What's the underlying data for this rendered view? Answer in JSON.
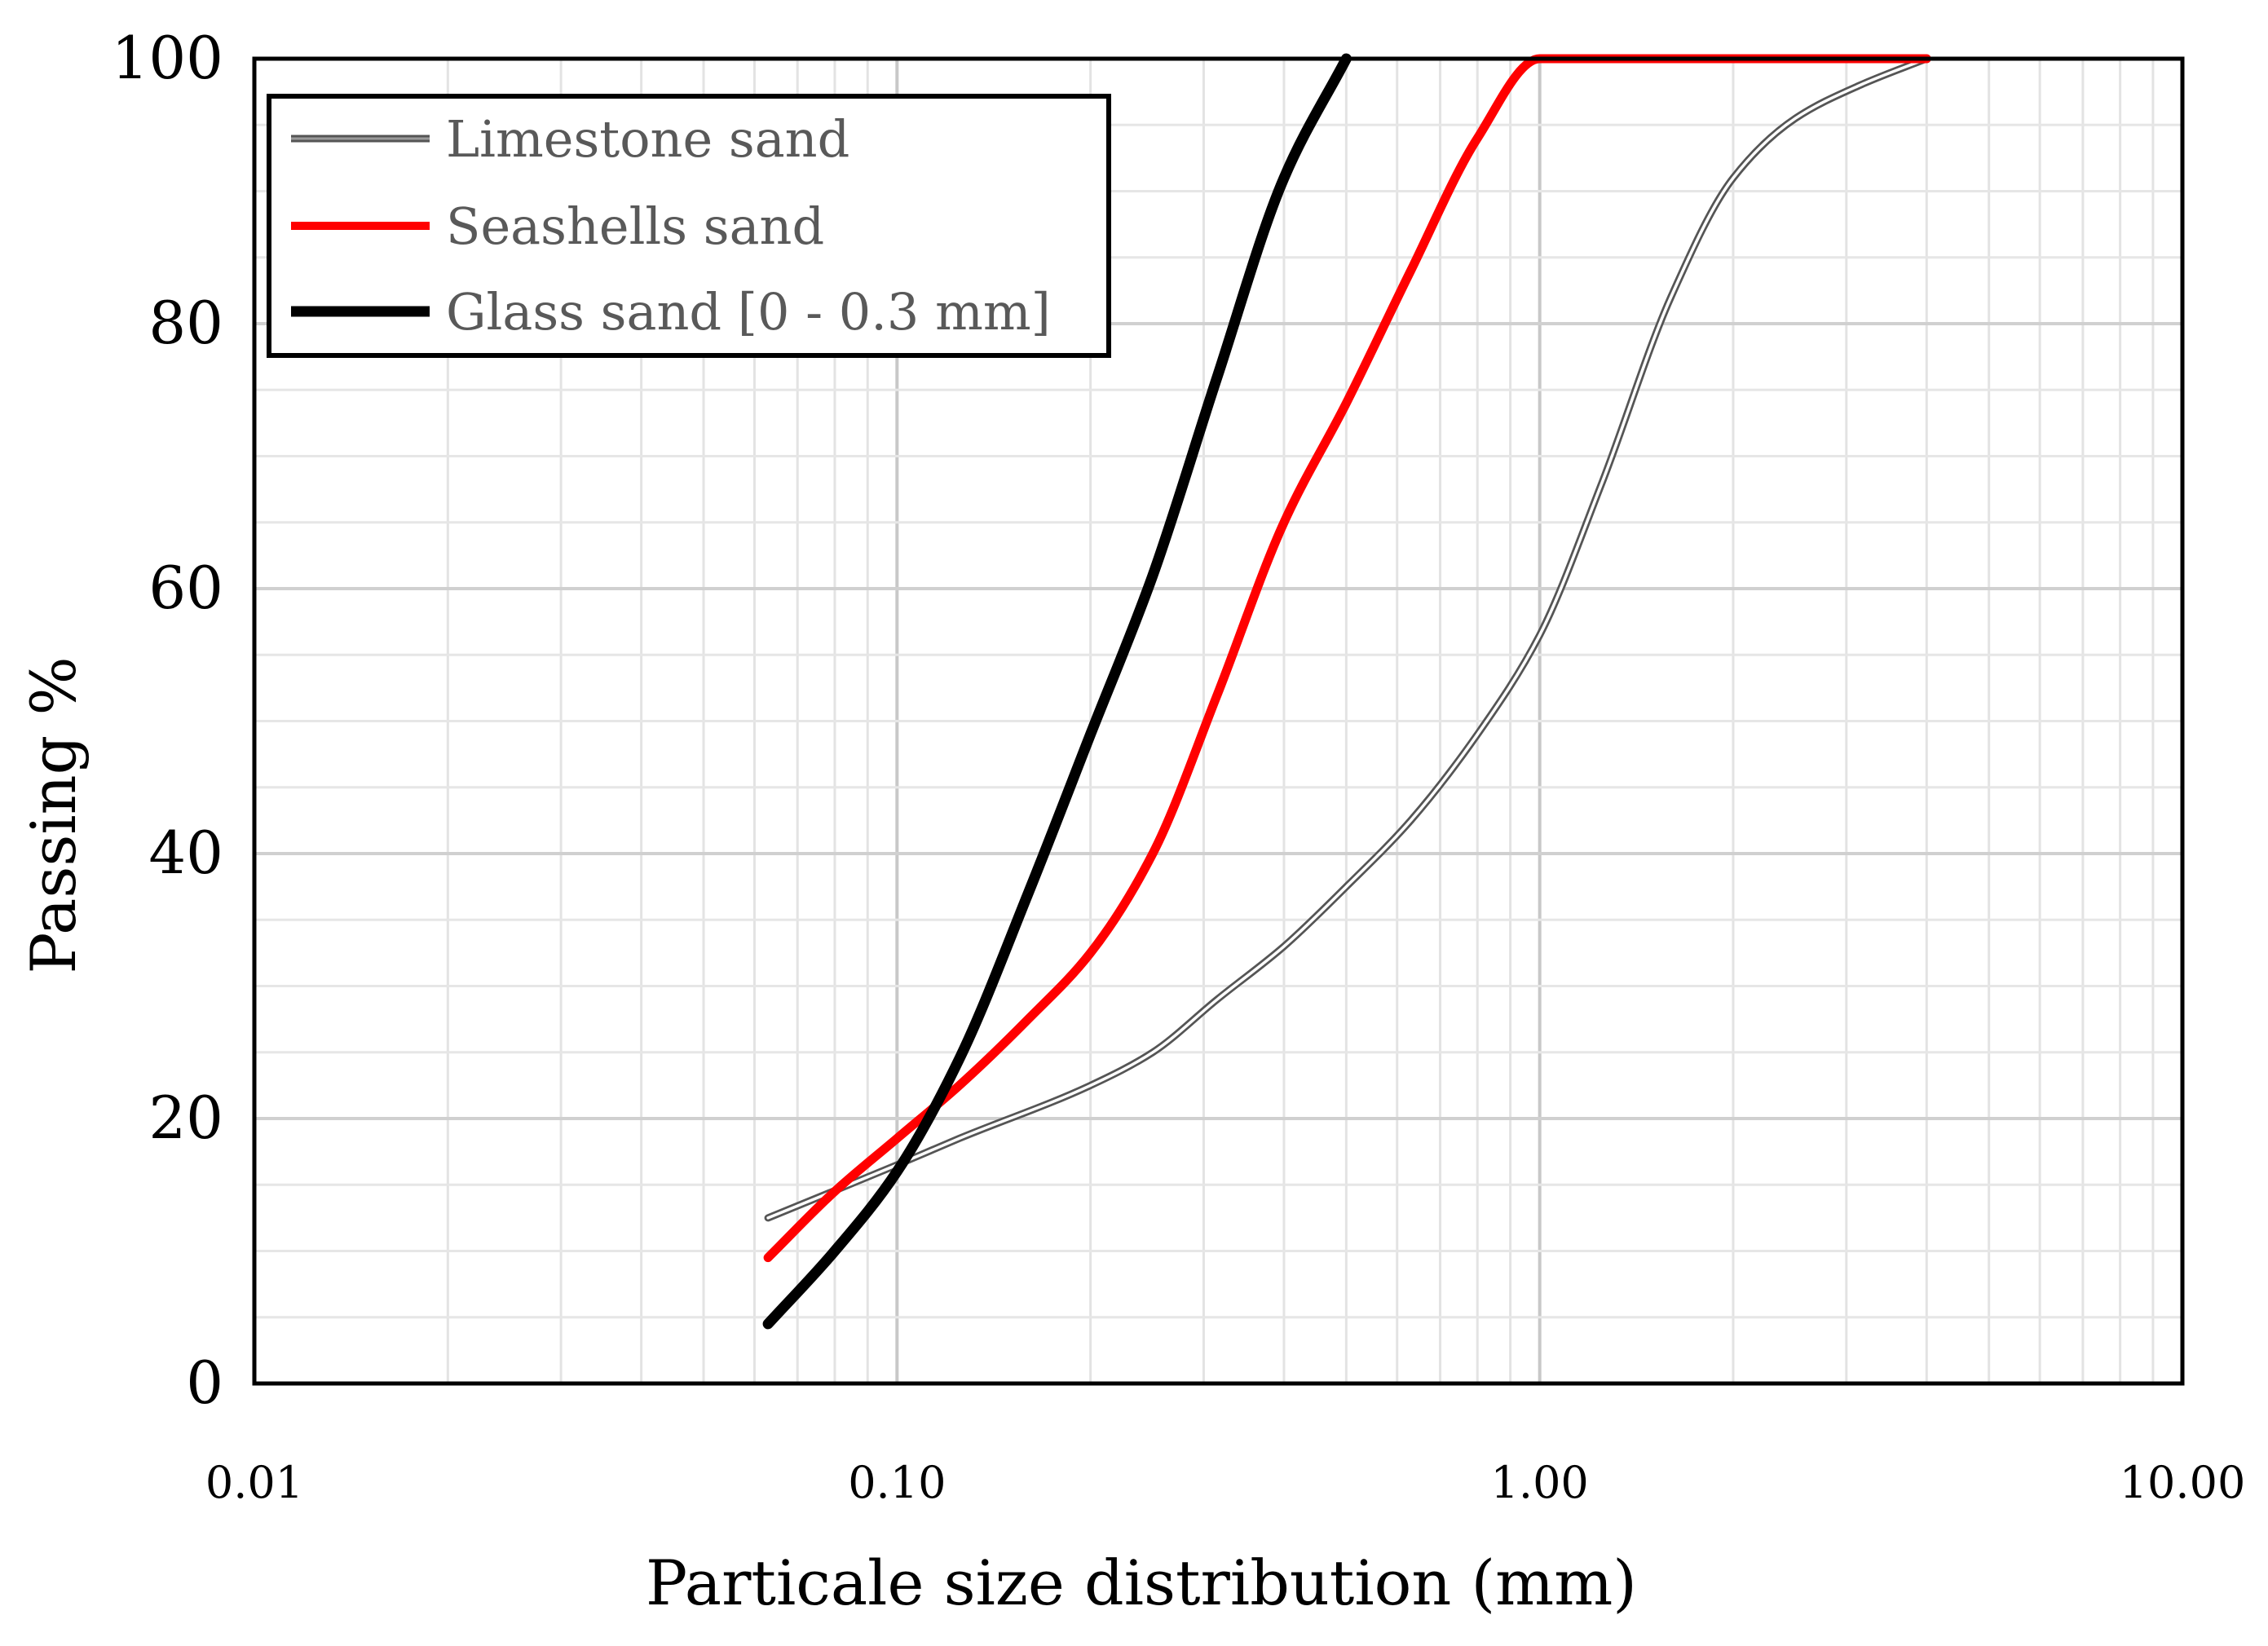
{
  "chart_data": {
    "type": "line",
    "xlabel": "Particale size distribution (mm)",
    "ylabel": "Passing %",
    "x_scale": "log",
    "xlim": [
      0.01,
      10
    ],
    "ylim": [
      0,
      100
    ],
    "x_ticks": [
      0.01,
      0.1,
      1,
      10
    ],
    "x_tick_labels": [
      "0.01",
      "0.10",
      "1.00",
      "10.00"
    ],
    "y_ticks": [
      0,
      20,
      40,
      60,
      80,
      100
    ],
    "y_tick_labels": [
      "0",
      "20",
      "40",
      "60",
      "80",
      "100"
    ],
    "grid": true,
    "legend_position": "top-left",
    "series": [
      {
        "name": "Limestone sand",
        "color": "#808080",
        "style": "double-outline",
        "x": [
          0.063,
          0.1,
          0.125,
          0.2,
          0.25,
          0.315,
          0.4,
          0.5,
          0.63,
          0.8,
          1.0,
          1.25,
          1.6,
          2.0,
          2.5,
          3.15,
          4.0
        ],
        "y": [
          12.5,
          16.5,
          18.5,
          22.5,
          25,
          29,
          33,
          37.5,
          42.5,
          49,
          56.5,
          68,
          82,
          91,
          95.5,
          98,
          100
        ]
      },
      {
        "name": "Seashells sand",
        "color": "#ff0000",
        "style": "solid",
        "x": [
          0.063,
          0.08,
          0.1,
          0.125,
          0.16,
          0.2,
          0.25,
          0.315,
          0.4,
          0.5,
          0.63,
          0.8,
          1.0,
          4.0
        ],
        "y": [
          9.5,
          14.5,
          18.5,
          22.5,
          27.5,
          32.5,
          40,
          52,
          65,
          74,
          84,
          94,
          100,
          100
        ]
      },
      {
        "name": "Glass sand [0 - 0.3 mm]",
        "color": "#000000",
        "style": "solid",
        "x": [
          0.063,
          0.08,
          0.1,
          0.125,
          0.16,
          0.2,
          0.25,
          0.315,
          0.4,
          0.5
        ],
        "y": [
          4.5,
          10,
          16,
          24.5,
          37,
          49,
          61,
          76,
          91,
          100
        ]
      }
    ]
  }
}
